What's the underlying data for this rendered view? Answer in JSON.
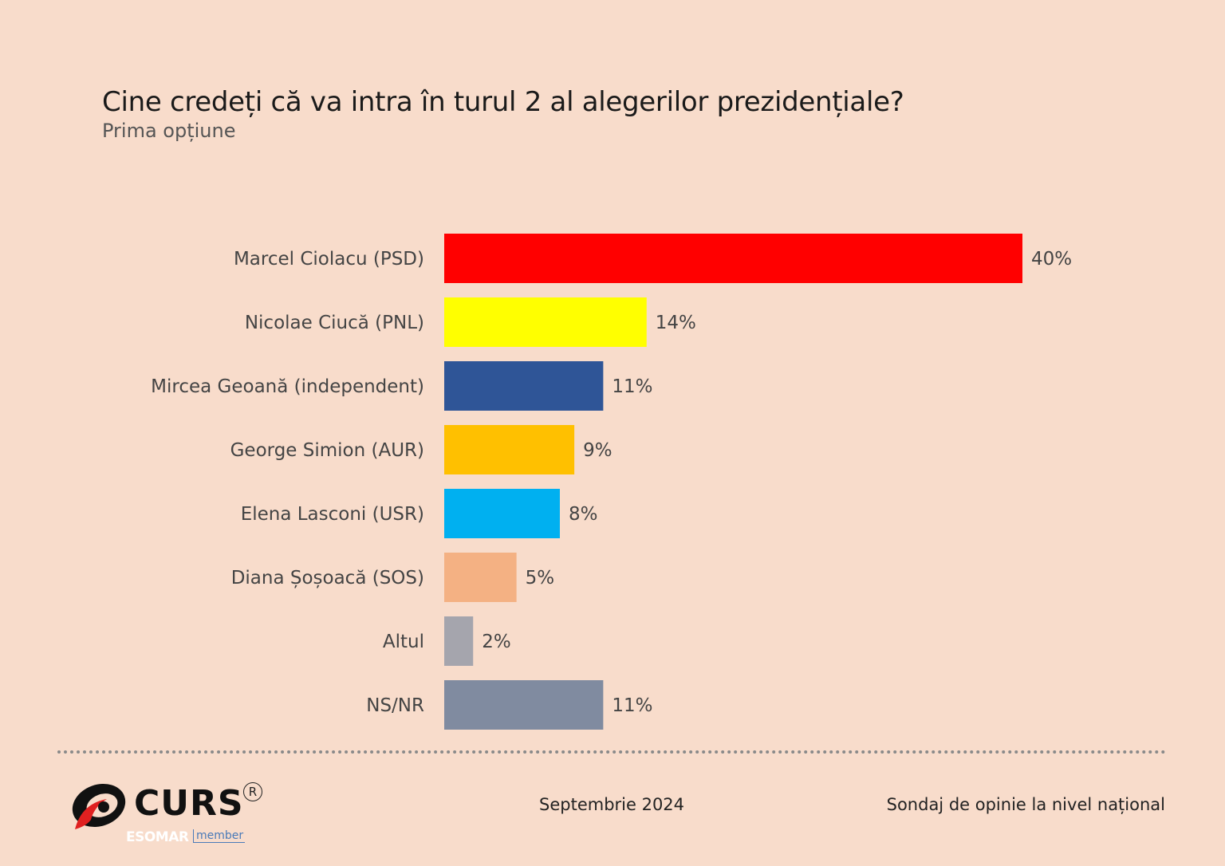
{
  "header": {
    "title": "Cine credeți că va intra în turul 2 al alegerilor prezidențiale?",
    "subtitle": "Prima opțiune"
  },
  "chart_data": {
    "type": "bar",
    "orientation": "horizontal",
    "title": "Cine credeți că va intra în turul 2 al alegerilor prezidențiale?",
    "subtitle": "Prima opțiune",
    "xlabel": "",
    "ylabel": "",
    "xlim": [
      0,
      40
    ],
    "grid": false,
    "legend": "none",
    "categories": [
      "Marcel Ciolacu (PSD)",
      "Nicolae Ciucă (PNL)",
      "Mircea Geoană (independent)",
      "George Simion (AUR)",
      "Elena Lasconi (USR)",
      "Diana Șoșoacă (SOS)",
      "Altul",
      "NS/NR"
    ],
    "values": [
      40,
      14,
      11,
      9,
      8,
      5,
      2,
      11
    ],
    "value_labels": [
      "40%",
      "14%",
      "11%",
      "9%",
      "8%",
      "5%",
      "2%",
      "11%"
    ],
    "colors": [
      "#ff0000",
      "#ffff00",
      "#2f5597",
      "#ffc000",
      "#00b0f0",
      "#f4b183",
      "#a5a5ad",
      "#808ba0"
    ]
  },
  "footer": {
    "logo_text": "CURS",
    "registered_mark": "R",
    "esomar": "ESOMAR",
    "member": "member",
    "date": "Septembrie 2024",
    "note": "Sondaj de opinie la nivel național"
  }
}
